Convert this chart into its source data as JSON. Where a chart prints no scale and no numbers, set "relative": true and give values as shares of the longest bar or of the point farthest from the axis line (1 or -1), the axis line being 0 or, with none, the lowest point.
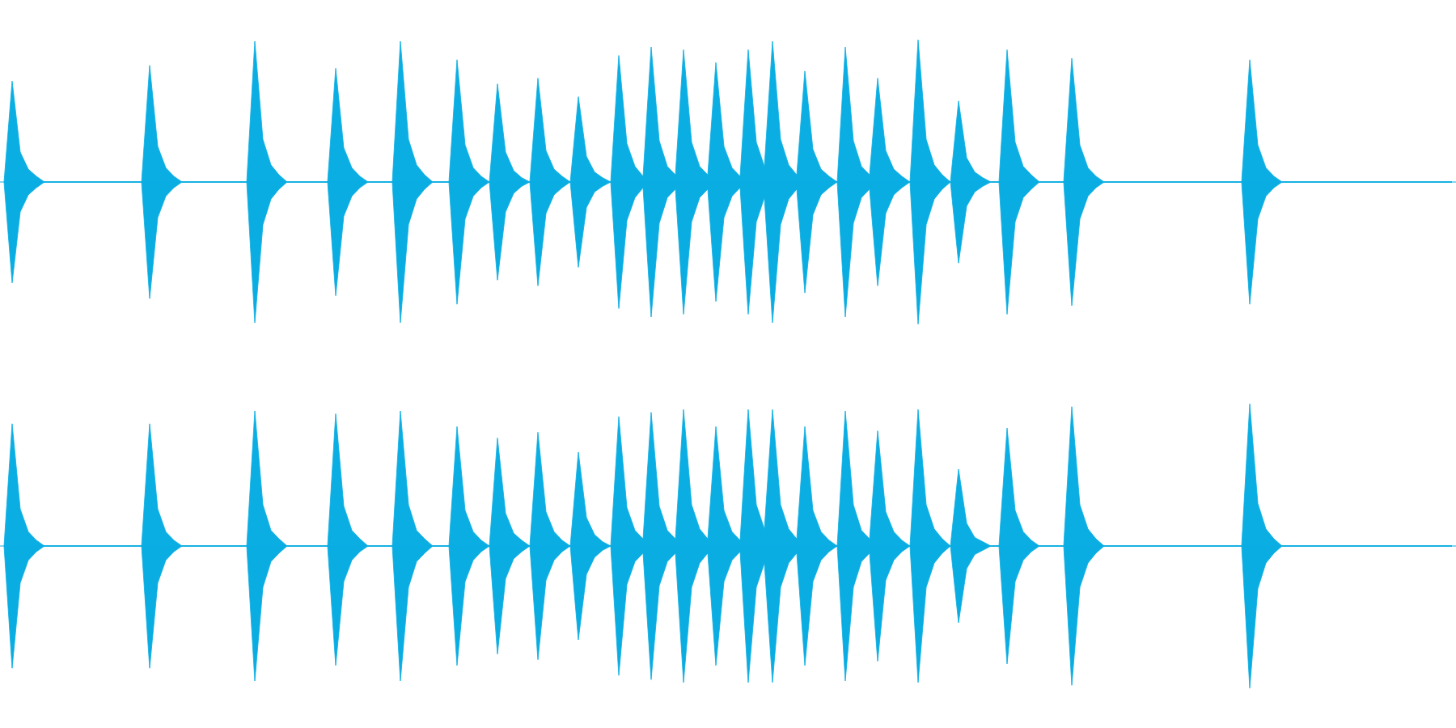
{
  "chart_data": [
    {
      "type": "area",
      "relative": true,
      "categories": [
        null,
        null,
        null,
        null,
        null,
        null,
        null,
        null,
        null,
        null,
        null,
        null,
        null,
        null,
        null,
        null,
        null,
        null,
        null,
        null,
        null,
        null,
        null,
        null,
        null,
        null,
        null,
        null,
        null,
        null,
        null,
        null,
        null,
        null,
        null,
        null,
        null,
        null,
        null,
        null,
        null,
        null,
        null,
        null,
        null,
        null,
        null,
        null,
        null,
        null,
        null,
        null,
        null,
        null,
        null,
        null,
        null,
        null,
        null,
        null,
        null,
        null,
        null,
        null,
        null,
        null,
        null,
        null,
        null,
        null,
        null,
        null,
        null,
        null,
        null,
        null,
        null,
        null,
        null,
        null,
        null,
        null,
        null,
        null,
        null,
        null,
        null,
        null,
        null,
        null,
        null,
        null,
        null,
        null,
        null,
        null,
        null,
        null,
        null,
        null,
        null,
        null,
        null,
        null,
        null,
        null,
        null,
        null,
        null,
        null,
        null,
        null,
        null,
        null,
        null,
        null,
        null,
        null,
        null,
        null,
        null,
        null,
        null,
        null,
        null,
        null,
        null,
        null,
        null,
        null,
        null,
        null,
        null,
        null,
        null,
        null,
        null,
        null,
        null,
        null,
        null,
        null,
        null,
        null,
        null,
        null,
        null,
        null,
        null,
        null,
        null,
        null,
        null,
        null,
        null,
        null,
        null,
        null,
        null,
        null,
        null,
        null,
        null,
        null,
        null,
        null,
        null,
        null,
        null,
        null,
        null,
        null,
        null,
        null,
        null,
        null,
        null,
        null,
        null,
        null
      ],
      "series": [
        {
          "color": "#0baee3",
          "values": [
            0,
            0.71,
            0.21,
            0.09,
            0.04,
            0,
            0,
            0,
            0,
            0,
            0,
            0,
            0,
            0,
            0,
            0,
            0,
            0,
            0.82,
            0.25,
            0.1,
            0.04,
            0,
            0,
            0,
            0,
            0,
            0,
            0,
            0,
            0,
            0.99,
            0.3,
            0.12,
            0.05,
            0,
            0,
            0,
            0,
            0,
            0,
            0.8,
            0.24,
            0.1,
            0.04,
            0,
            0,
            0,
            0,
            0.99,
            0.3,
            0.12,
            0.05,
            0,
            0,
            0,
            0.86,
            0.26,
            0.1,
            0.04,
            0,
            0.69,
            0.21,
            0.08,
            0.03,
            0,
            0.73,
            0.22,
            0.09,
            0.04,
            0,
            0.6,
            0.18,
            0.07,
            0.03,
            0,
            0.89,
            0.27,
            0.11,
            0.04,
            0.95,
            0.29,
            0.11,
            0.05,
            0.93,
            0.28,
            0.11,
            0.05,
            0.84,
            0.25,
            0.1,
            0.04,
            0.93,
            0.28,
            0.11,
            0.99,
            0.3,
            0.12,
            0.05,
            0.78,
            0.23,
            0.09,
            0.04,
            0,
            0.95,
            0.29,
            0.11,
            0.05,
            0.73,
            0.22,
            0.09,
            0.04,
            0,
            1,
            0.3,
            0.12,
            0.05,
            0,
            0.57,
            0.17,
            0.07,
            0.03,
            0,
            0,
            0.93,
            0.28,
            0.11,
            0.05,
            0,
            0,
            0,
            0,
            0.87,
            0.26,
            0.1,
            0.04,
            0,
            0,
            0,
            0,
            0,
            0,
            0,
            0,
            0,
            0,
            0,
            0,
            0,
            0,
            0,
            0,
            0,
            0,
            0.86,
            0.26,
            0.1,
            0.04,
            0,
            0,
            0,
            0,
            0,
            0,
            0,
            0,
            0,
            0,
            0,
            0,
            0,
            0,
            0,
            0,
            0,
            0,
            0,
            0,
            0,
            0
          ]
        },
        {
          "color": "#0aade2",
          "values": [
            0,
            -0.71,
            -0.21,
            -0.09,
            -0.04,
            0,
            0,
            0,
            0,
            0,
            0,
            0,
            0,
            0,
            0,
            0,
            0,
            0,
            -0.82,
            -0.25,
            -0.1,
            -0.04,
            0,
            0,
            0,
            0,
            0,
            0,
            0,
            0,
            0,
            -0.99,
            -0.3,
            -0.12,
            -0.05,
            0,
            0,
            0,
            0,
            0,
            0,
            -0.8,
            -0.24,
            -0.1,
            -0.04,
            0,
            0,
            0,
            0,
            -0.99,
            -0.3,
            -0.12,
            -0.05,
            0,
            0,
            0,
            -0.86,
            -0.26,
            -0.1,
            -0.04,
            0,
            -0.69,
            -0.21,
            -0.08,
            -0.03,
            0,
            -0.73,
            -0.22,
            -0.09,
            -0.04,
            0,
            -0.6,
            -0.18,
            -0.07,
            -0.03,
            0,
            -0.89,
            -0.27,
            -0.11,
            -0.04,
            -0.95,
            -0.29,
            -0.11,
            -0.05,
            -0.93,
            -0.28,
            -0.11,
            -0.05,
            -0.84,
            -0.25,
            -0.1,
            -0.04,
            -0.93,
            -0.28,
            -0.11,
            -0.99,
            -0.3,
            -0.12,
            -0.05,
            -0.78,
            -0.23,
            -0.09,
            -0.04,
            0,
            -0.95,
            -0.29,
            -0.11,
            -0.05,
            -0.73,
            -0.22,
            -0.09,
            -0.04,
            0,
            -1,
            -0.3,
            -0.12,
            -0.05,
            0,
            -0.57,
            -0.17,
            -0.07,
            -0.03,
            0,
            0,
            -0.93,
            -0.28,
            -0.11,
            -0.05,
            0,
            0,
            0,
            0,
            -0.87,
            -0.26,
            -0.1,
            -0.04,
            0,
            0,
            0,
            0,
            0,
            0,
            0,
            0,
            0,
            0,
            0,
            0,
            0,
            0,
            0,
            0,
            0,
            0,
            -0.86,
            -0.26,
            -0.1,
            -0.04,
            0,
            0,
            0,
            0,
            0,
            0,
            0,
            0,
            0,
            0,
            0,
            0,
            0,
            0,
            0,
            0,
            0,
            0,
            0,
            0,
            0,
            0
          ]
        }
      ]
    },
    {
      "type": "area",
      "relative": true,
      "categories": [
        null,
        null,
        null,
        null,
        null,
        null,
        null,
        null,
        null,
        null,
        null,
        null,
        null,
        null,
        null,
        null,
        null,
        null,
        null,
        null,
        null,
        null,
        null,
        null,
        null,
        null,
        null,
        null,
        null,
        null,
        null,
        null,
        null,
        null,
        null,
        null,
        null,
        null,
        null,
        null,
        null,
        null,
        null,
        null,
        null,
        null,
        null,
        null,
        null,
        null,
        null,
        null,
        null,
        null,
        null,
        null,
        null,
        null,
        null,
        null,
        null,
        null,
        null,
        null,
        null,
        null,
        null,
        null,
        null,
        null,
        null,
        null,
        null,
        null,
        null,
        null,
        null,
        null,
        null,
        null,
        null,
        null,
        null,
        null,
        null,
        null,
        null,
        null,
        null,
        null,
        null,
        null,
        null,
        null,
        null,
        null,
        null,
        null,
        null,
        null,
        null,
        null,
        null,
        null,
        null,
        null,
        null,
        null,
        null,
        null,
        null,
        null,
        null,
        null,
        null,
        null,
        null,
        null,
        null,
        null,
        null,
        null,
        null,
        null,
        null,
        null,
        null,
        null,
        null,
        null,
        null,
        null,
        null,
        null,
        null,
        null,
        null,
        null,
        null,
        null,
        null,
        null,
        null,
        null,
        null,
        null,
        null,
        null,
        null,
        null,
        null,
        null,
        null,
        null,
        null,
        null,
        null,
        null,
        null,
        null,
        null,
        null,
        null,
        null,
        null,
        null,
        null,
        null,
        null,
        null,
        null,
        null,
        null,
        null,
        null,
        null,
        null,
        null,
        null,
        null
      ],
      "series": [
        {
          "color": "#0baee3",
          "values": [
            0,
            0.86,
            0.26,
            0.1,
            0.04,
            0,
            0,
            0,
            0,
            0,
            0,
            0,
            0,
            0,
            0,
            0,
            0,
            0,
            0.86,
            0.26,
            0.1,
            0.04,
            0,
            0,
            0,
            0,
            0,
            0,
            0,
            0,
            0,
            0.95,
            0.29,
            0.11,
            0.05,
            0,
            0,
            0,
            0,
            0,
            0,
            0.93,
            0.28,
            0.11,
            0.05,
            0,
            0,
            0,
            0,
            0.95,
            0.29,
            0.11,
            0.05,
            0,
            0,
            0,
            0.84,
            0.25,
            0.1,
            0.04,
            0,
            0.76,
            0.23,
            0.09,
            0.04,
            0,
            0.8,
            0.24,
            0.1,
            0.04,
            0,
            0.66,
            0.2,
            0.08,
            0.03,
            0,
            0.91,
            0.27,
            0.11,
            0.05,
            0.94,
            0.28,
            0.11,
            0.05,
            0.96,
            0.29,
            0.12,
            0.05,
            0.84,
            0.25,
            0.1,
            0.04,
            0.96,
            0.29,
            0.12,
            0.96,
            0.29,
            0.12,
            0.05,
            0.84,
            0.25,
            0.1,
            0.04,
            0,
            0.95,
            0.29,
            0.11,
            0.05,
            0.81,
            0.24,
            0.1,
            0.04,
            0,
            0.96,
            0.29,
            0.12,
            0.05,
            0,
            0.54,
            0.16,
            0.06,
            0.03,
            0,
            0,
            0.83,
            0.25,
            0.1,
            0.04,
            0,
            0,
            0,
            0,
            0.98,
            0.29,
            0.12,
            0.05,
            0,
            0,
            0,
            0,
            0,
            0,
            0,
            0,
            0,
            0,
            0,
            0,
            0,
            0,
            0,
            0,
            0,
            0,
            1,
            0.3,
            0.12,
            0.05,
            0,
            0,
            0,
            0,
            0,
            0,
            0,
            0,
            0,
            0,
            0,
            0,
            0,
            0,
            0,
            0,
            0,
            0,
            0,
            0,
            0,
            0
          ]
        },
        {
          "color": "#0aade2",
          "values": [
            0,
            -0.86,
            -0.26,
            -0.1,
            -0.04,
            0,
            0,
            0,
            0,
            0,
            0,
            0,
            0,
            0,
            0,
            0,
            0,
            0,
            -0.86,
            -0.26,
            -0.1,
            -0.04,
            0,
            0,
            0,
            0,
            0,
            0,
            0,
            0,
            0,
            -0.95,
            -0.29,
            -0.11,
            -0.05,
            0,
            0,
            0,
            0,
            0,
            0,
            -0.84,
            -0.25,
            -0.1,
            -0.04,
            0,
            0,
            0,
            0,
            -0.95,
            -0.29,
            -0.11,
            -0.05,
            0,
            0,
            0,
            -0.84,
            -0.25,
            -0.1,
            -0.04,
            0,
            -0.76,
            -0.23,
            -0.09,
            -0.04,
            0,
            -0.8,
            -0.24,
            -0.1,
            -0.04,
            0,
            -0.66,
            -0.2,
            -0.08,
            -0.03,
            0,
            -0.91,
            -0.27,
            -0.11,
            -0.05,
            -0.94,
            -0.28,
            -0.11,
            -0.05,
            -0.96,
            -0.29,
            -0.12,
            -0.05,
            -0.84,
            -0.25,
            -0.1,
            -0.04,
            -0.96,
            -0.29,
            -0.12,
            -0.96,
            -0.29,
            -0.12,
            -0.05,
            -0.84,
            -0.25,
            -0.1,
            -0.04,
            0,
            -0.95,
            -0.29,
            -0.11,
            -0.05,
            -0.81,
            -0.24,
            -0.1,
            -0.04,
            0,
            -0.96,
            -0.29,
            -0.12,
            -0.05,
            0,
            -0.54,
            -0.16,
            -0.06,
            -0.03,
            0,
            0,
            -0.83,
            -0.25,
            -0.1,
            -0.04,
            0,
            0,
            0,
            0,
            -0.98,
            -0.29,
            -0.12,
            -0.05,
            0,
            0,
            0,
            0,
            0,
            0,
            0,
            0,
            0,
            0,
            0,
            0,
            0,
            0,
            0,
            0,
            0,
            0,
            -1,
            -0.3,
            -0.12,
            -0.05,
            0,
            0,
            0,
            0,
            0,
            0,
            0,
            0,
            0,
            0,
            0,
            0,
            0,
            0,
            0,
            0,
            0,
            0,
            0,
            0,
            0,
            0
          ]
        }
      ]
    }
  ]
}
